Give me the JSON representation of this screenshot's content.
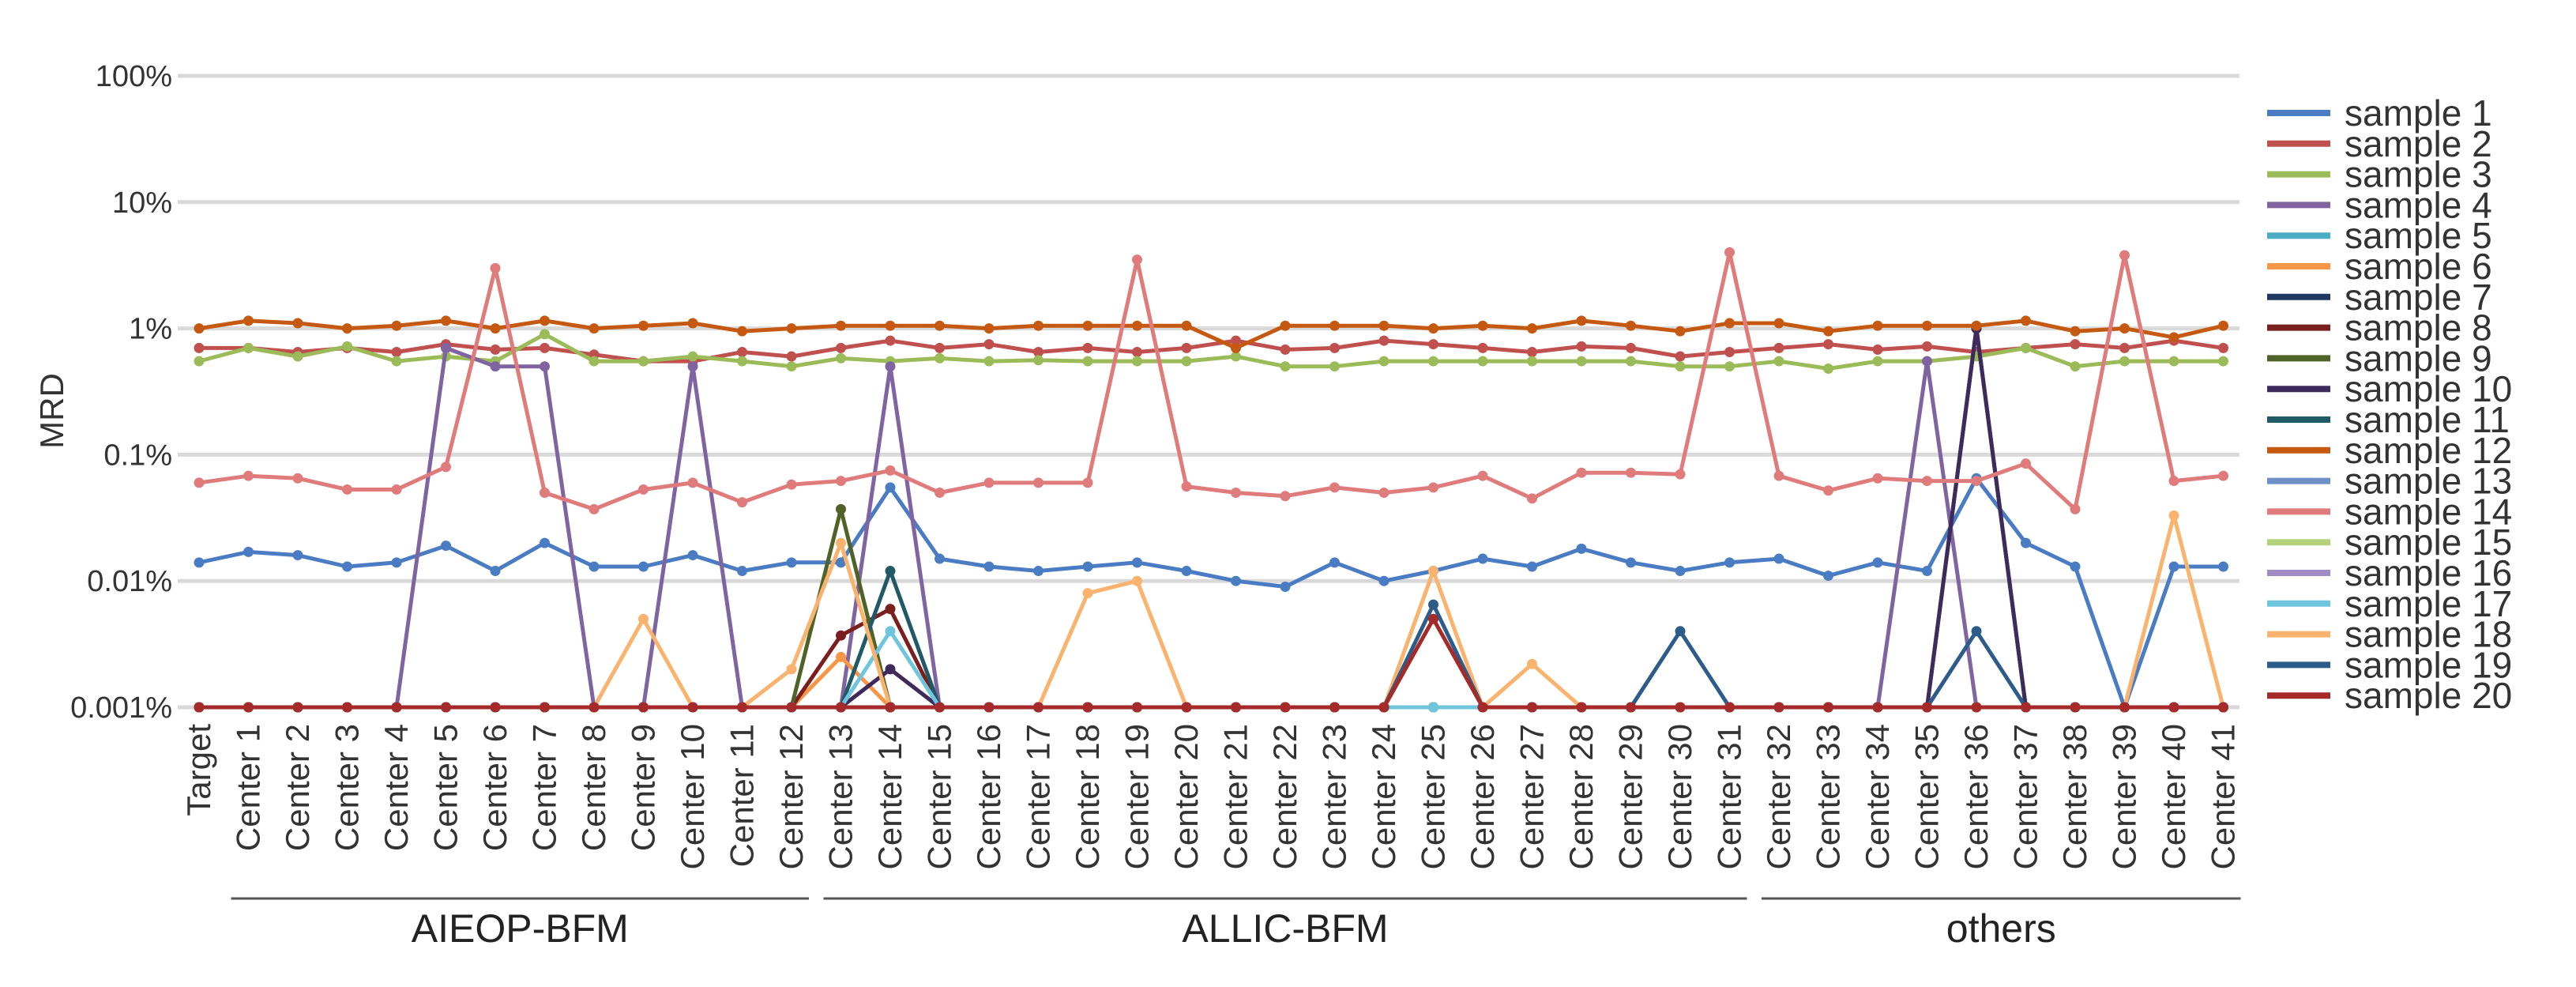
{
  "chart_data": {
    "type": "line",
    "ylabel": "MRD",
    "xlabel": "",
    "yscale": "log",
    "ylim": [
      0.001,
      100
    ],
    "y_tick_labels": [
      "100%",
      "10%",
      "1%",
      "0.1%",
      "0.01%",
      "0.001%"
    ],
    "y_tick_values": [
      100,
      10,
      1,
      0.1,
      0.01,
      0.001
    ],
    "grid": true,
    "legend_position": "right",
    "categories": [
      "Target",
      "Center 1",
      "Center 2",
      "Center 3",
      "Center 4",
      "Center 5",
      "Center 6",
      "Center 7",
      "Center 8",
      "Center 9",
      "Center 10",
      "Center 11",
      "Center 12",
      "Center 13",
      "Center 14",
      "Center 15",
      "Center 16",
      "Center 17",
      "Center 18",
      "Center 19",
      "Center 20",
      "Center 21",
      "Center 22",
      "Center 23",
      "Center 24",
      "Center 25",
      "Center 26",
      "Center 27",
      "Center 28",
      "Center 29",
      "Center 30",
      "Center 31",
      "Center 32",
      "Center 33",
      "Center 34",
      "Center 35",
      "Center 36",
      "Center 37",
      "Center 38",
      "Center 39",
      "Center 40",
      "Center 41"
    ],
    "groups": [
      {
        "label": "AIEOP-BFM",
        "start": 1,
        "end": 12
      },
      {
        "label": "ALLIC-BFM",
        "start": 13,
        "end": 31
      },
      {
        "label": "others",
        "start": 32,
        "end": 41
      }
    ],
    "series": [
      {
        "name": "sample 1",
        "color": "#4a7cc4",
        "values": [
          0.014,
          0.017,
          0.016,
          0.013,
          0.014,
          0.019,
          0.012,
          0.02,
          0.013,
          0.013,
          0.016,
          0.012,
          0.014,
          0.014,
          0.055,
          0.015,
          0.013,
          0.012,
          0.013,
          0.014,
          0.012,
          0.01,
          0.009,
          0.014,
          0.01,
          0.012,
          0.015,
          0.013,
          0.018,
          0.014,
          0.012,
          0.014,
          0.015,
          0.011,
          0.014,
          0.012,
          0.065,
          0.02,
          0.013,
          0.001,
          0.013,
          0.013
        ]
      },
      {
        "name": "sample 2",
        "color": "#c0504d",
        "values": [
          0.7,
          0.7,
          0.65,
          0.7,
          0.65,
          0.75,
          0.68,
          0.7,
          0.62,
          0.55,
          0.55,
          0.65,
          0.6,
          0.7,
          0.8,
          0.7,
          0.75,
          0.65,
          0.7,
          0.65,
          0.7,
          0.8,
          0.68,
          0.7,
          0.8,
          0.75,
          0.7,
          0.65,
          0.72,
          0.7,
          0.6,
          0.65,
          0.7,
          0.75,
          0.68,
          0.72,
          0.65,
          0.7,
          0.75,
          0.7,
          0.8,
          0.7
        ]
      },
      {
        "name": "sample 3",
        "color": "#9bbb59",
        "values": [
          0.55,
          0.7,
          0.6,
          0.72,
          0.55,
          0.6,
          0.55,
          0.9,
          0.55,
          0.55,
          0.6,
          0.55,
          0.5,
          0.58,
          0.55,
          0.58,
          0.55,
          0.56,
          0.55,
          0.55,
          0.55,
          0.6,
          0.5,
          0.5,
          0.55,
          0.55,
          0.55,
          0.55,
          0.55,
          0.55,
          0.5,
          0.5,
          0.55,
          0.48,
          0.55,
          0.55,
          0.6,
          0.7,
          0.5,
          0.55,
          0.55,
          0.55
        ]
      },
      {
        "name": "sample 4",
        "color": "#8064a2",
        "values": [
          0.001,
          0.001,
          0.001,
          0.001,
          0.001,
          0.7,
          0.5,
          0.5,
          0.001,
          0.001,
          0.5,
          0.001,
          0.001,
          0.001,
          0.5,
          0.001,
          0.001,
          0.001,
          0.001,
          0.001,
          0.001,
          0.001,
          0.001,
          0.001,
          0.001,
          0.001,
          0.001,
          0.001,
          0.001,
          0.001,
          0.001,
          0.001,
          0.001,
          0.001,
          0.001,
          0.55,
          0.001,
          0.001,
          0.001,
          0.001,
          0.001,
          0.001
        ]
      },
      {
        "name": "sample 5",
        "color": "#4bacc6",
        "values": [
          0.001,
          0.001,
          0.001,
          0.001,
          0.001,
          0.001,
          0.001,
          0.001,
          0.001,
          0.001,
          0.001,
          0.001,
          0.001,
          0.001,
          0.001,
          0.001,
          0.001,
          0.001,
          0.001,
          0.001,
          0.001,
          0.001,
          0.001,
          0.001,
          0.001,
          0.001,
          0.001,
          0.001,
          0.001,
          0.001,
          0.001,
          0.001,
          0.001,
          0.001,
          0.001,
          0.001,
          0.001,
          0.001,
          0.001,
          0.001,
          0.001,
          0.001
        ]
      },
      {
        "name": "sample 6",
        "color": "#f79646",
        "values": [
          0.001,
          0.001,
          0.001,
          0.001,
          0.001,
          0.001,
          0.001,
          0.001,
          0.001,
          0.001,
          0.001,
          0.001,
          0.001,
          0.0025,
          0.001,
          0.001,
          0.001,
          0.001,
          0.001,
          0.001,
          0.001,
          0.001,
          0.001,
          0.001,
          0.001,
          0.001,
          0.001,
          0.001,
          0.001,
          0.001,
          0.001,
          0.001,
          0.001,
          0.001,
          0.001,
          0.001,
          0.001,
          0.001,
          0.001,
          0.001,
          0.001,
          0.001
        ]
      },
      {
        "name": "sample 7",
        "color": "#1f3864",
        "values": [
          0.001,
          0.001,
          0.001,
          0.001,
          0.001,
          0.001,
          0.001,
          0.001,
          0.001,
          0.001,
          0.001,
          0.001,
          0.001,
          0.001,
          0.001,
          0.001,
          0.001,
          0.001,
          0.001,
          0.001,
          0.001,
          0.001,
          0.001,
          0.001,
          0.001,
          0.001,
          0.001,
          0.001,
          0.001,
          0.001,
          0.001,
          0.001,
          0.001,
          0.001,
          0.001,
          0.001,
          1.0,
          0.001,
          0.001,
          0.001,
          0.001,
          0.001
        ]
      },
      {
        "name": "sample 8",
        "color": "#7b1e1e",
        "values": [
          0.001,
          0.001,
          0.001,
          0.001,
          0.001,
          0.001,
          0.001,
          0.001,
          0.001,
          0.001,
          0.001,
          0.001,
          0.001,
          0.0037,
          0.006,
          0.001,
          0.001,
          0.001,
          0.001,
          0.001,
          0.001,
          0.001,
          0.001,
          0.001,
          0.001,
          0.001,
          0.001,
          0.001,
          0.001,
          0.001,
          0.001,
          0.001,
          0.001,
          0.001,
          0.001,
          0.001,
          0.001,
          0.001,
          0.001,
          0.001,
          0.001,
          0.001
        ]
      },
      {
        "name": "sample 9",
        "color": "#4f6228",
        "values": [
          0.001,
          0.001,
          0.001,
          0.001,
          0.001,
          0.001,
          0.001,
          0.001,
          0.001,
          0.001,
          0.001,
          0.001,
          0.001,
          0.037,
          0.001,
          0.001,
          0.001,
          0.001,
          0.001,
          0.001,
          0.001,
          0.001,
          0.001,
          0.001,
          0.001,
          0.001,
          0.001,
          0.001,
          0.001,
          0.001,
          0.001,
          0.001,
          0.001,
          0.001,
          0.001,
          0.001,
          0.001,
          0.001,
          0.001,
          0.001,
          0.001,
          0.001
        ]
      },
      {
        "name": "sample 10",
        "color": "#3f2a5c",
        "values": [
          0.001,
          0.001,
          0.001,
          0.001,
          0.001,
          0.001,
          0.001,
          0.001,
          0.001,
          0.001,
          0.001,
          0.001,
          0.001,
          0.001,
          0.002,
          0.001,
          0.001,
          0.001,
          0.001,
          0.001,
          0.001,
          0.001,
          0.001,
          0.001,
          0.001,
          0.001,
          0.001,
          0.001,
          0.001,
          0.001,
          0.001,
          0.001,
          0.001,
          0.001,
          0.001,
          0.001,
          1.0,
          0.001,
          0.001,
          0.001,
          0.001,
          0.001
        ]
      },
      {
        "name": "sample 11",
        "color": "#215967",
        "values": [
          0.001,
          0.001,
          0.001,
          0.001,
          0.001,
          0.001,
          0.001,
          0.001,
          0.001,
          0.001,
          0.001,
          0.001,
          0.001,
          0.001,
          0.012,
          0.001,
          0.001,
          0.001,
          0.001,
          0.001,
          0.001,
          0.001,
          0.001,
          0.001,
          0.001,
          0.001,
          0.001,
          0.001,
          0.001,
          0.001,
          0.001,
          0.001,
          0.001,
          0.001,
          0.001,
          0.001,
          0.001,
          0.001,
          0.001,
          0.001,
          0.001,
          0.001
        ]
      },
      {
        "name": "sample 12",
        "color": "#c65911",
        "values": [
          1.0,
          1.15,
          1.1,
          1.0,
          1.05,
          1.15,
          1.0,
          1.15,
          1.0,
          1.05,
          1.1,
          0.95,
          1.0,
          1.05,
          1.05,
          1.05,
          1.0,
          1.05,
          1.05,
          1.05,
          1.05,
          0.7,
          1.05,
          1.05,
          1.05,
          1.0,
          1.05,
          1.0,
          1.15,
          1.05,
          0.95,
          1.1,
          1.1,
          0.95,
          1.05,
          1.05,
          1.05,
          1.15,
          0.95,
          1.0,
          0.85,
          1.05
        ]
      },
      {
        "name": "sample 13",
        "color": "#6e8fc7",
        "values": [
          0.001,
          0.001,
          0.001,
          0.001,
          0.001,
          0.001,
          0.001,
          0.001,
          0.001,
          0.001,
          0.001,
          0.001,
          0.001,
          0.001,
          0.001,
          0.001,
          0.001,
          0.001,
          0.001,
          0.001,
          0.001,
          0.001,
          0.001,
          0.001,
          0.001,
          0.001,
          0.001,
          0.001,
          0.001,
          0.001,
          0.001,
          0.001,
          0.001,
          0.001,
          0.001,
          0.001,
          0.001,
          0.001,
          0.001,
          0.001,
          0.001,
          0.001
        ]
      },
      {
        "name": "sample 14",
        "color": "#e07b7b",
        "values": [
          0.06,
          0.068,
          0.065,
          0.053,
          0.053,
          0.08,
          3.0,
          0.05,
          0.037,
          0.053,
          0.06,
          0.042,
          0.058,
          0.062,
          0.075,
          0.05,
          0.06,
          0.06,
          0.06,
          3.5,
          0.056,
          0.05,
          0.047,
          0.055,
          0.05,
          0.055,
          0.068,
          0.045,
          0.072,
          0.072,
          0.07,
          4.0,
          0.068,
          0.052,
          0.065,
          0.062,
          0.062,
          0.085,
          0.037,
          3.8,
          0.062,
          0.068
        ]
      },
      {
        "name": "sample 15",
        "color": "#b3d07a",
        "values": [
          0.001,
          0.001,
          0.001,
          0.001,
          0.001,
          0.001,
          0.001,
          0.001,
          0.001,
          0.001,
          0.001,
          0.001,
          0.001,
          0.001,
          0.001,
          0.001,
          0.001,
          0.001,
          0.001,
          0.001,
          0.001,
          0.001,
          0.001,
          0.001,
          0.001,
          0.001,
          0.001,
          0.001,
          0.001,
          0.001,
          0.001,
          0.001,
          0.001,
          0.001,
          0.001,
          0.001,
          0.001,
          0.001,
          0.001,
          0.001,
          0.001,
          0.001
        ]
      },
      {
        "name": "sample 16",
        "color": "#a08bc4",
        "values": [
          0.001,
          0.001,
          0.001,
          0.001,
          0.001,
          0.001,
          0.001,
          0.001,
          0.001,
          0.001,
          0.001,
          0.001,
          0.001,
          0.001,
          0.001,
          0.001,
          0.001,
          0.001,
          0.001,
          0.001,
          0.001,
          0.001,
          0.001,
          0.001,
          0.001,
          0.001,
          0.001,
          0.001,
          0.001,
          0.001,
          0.001,
          0.001,
          0.001,
          0.001,
          0.001,
          0.001,
          0.001,
          0.001,
          0.001,
          0.001,
          0.001,
          0.001
        ]
      },
      {
        "name": "sample 17",
        "color": "#6fc6dc",
        "values": [
          0.001,
          0.001,
          0.001,
          0.001,
          0.001,
          0.001,
          0.001,
          0.001,
          0.001,
          0.001,
          0.001,
          0.001,
          0.001,
          0.001,
          0.004,
          0.001,
          0.001,
          0.001,
          0.001,
          0.001,
          0.001,
          0.001,
          0.001,
          0.001,
          0.001,
          0.001,
          0.001,
          0.001,
          0.001,
          0.001,
          0.001,
          0.001,
          0.001,
          0.001,
          0.001,
          0.001,
          0.001,
          0.001,
          0.001,
          0.001,
          0.001,
          0.001
        ]
      },
      {
        "name": "sample 18",
        "color": "#f9b36e",
        "values": [
          0.001,
          0.001,
          0.001,
          0.001,
          0.001,
          0.001,
          0.001,
          0.001,
          0.001,
          0.005,
          0.001,
          0.001,
          0.002,
          0.02,
          0.001,
          0.001,
          0.001,
          0.001,
          0.008,
          0.01,
          0.001,
          0.001,
          0.001,
          0.001,
          0.001,
          0.012,
          0.001,
          0.0022,
          0.001,
          0.001,
          0.001,
          0.001,
          0.001,
          0.001,
          0.001,
          0.001,
          0.001,
          0.001,
          0.001,
          0.001,
          0.033,
          0.001
        ]
      },
      {
        "name": "sample 19",
        "color": "#2e5c8a",
        "values": [
          0.001,
          0.001,
          0.001,
          0.001,
          0.001,
          0.001,
          0.001,
          0.001,
          0.001,
          0.001,
          0.001,
          0.001,
          0.001,
          0.001,
          0.001,
          0.001,
          0.001,
          0.001,
          0.001,
          0.001,
          0.001,
          0.001,
          0.001,
          0.001,
          0.001,
          0.0065,
          0.001,
          0.001,
          0.001,
          0.001,
          0.004,
          0.001,
          0.001,
          0.001,
          0.001,
          0.001,
          0.004,
          0.001,
          0.001,
          0.001,
          0.001,
          0.001
        ]
      },
      {
        "name": "sample 20",
        "color": "#a52a2a",
        "values": [
          0.001,
          0.001,
          0.001,
          0.001,
          0.001,
          0.001,
          0.001,
          0.001,
          0.001,
          0.001,
          0.001,
          0.001,
          0.001,
          0.001,
          0.001,
          0.001,
          0.001,
          0.001,
          0.001,
          0.001,
          0.001,
          0.001,
          0.001,
          0.001,
          0.001,
          0.005,
          0.001,
          0.001,
          0.001,
          0.001,
          0.001,
          0.001,
          0.001,
          0.001,
          0.001,
          0.001,
          0.001,
          0.001,
          0.001,
          0.001,
          0.001,
          0.001
        ]
      }
    ]
  }
}
